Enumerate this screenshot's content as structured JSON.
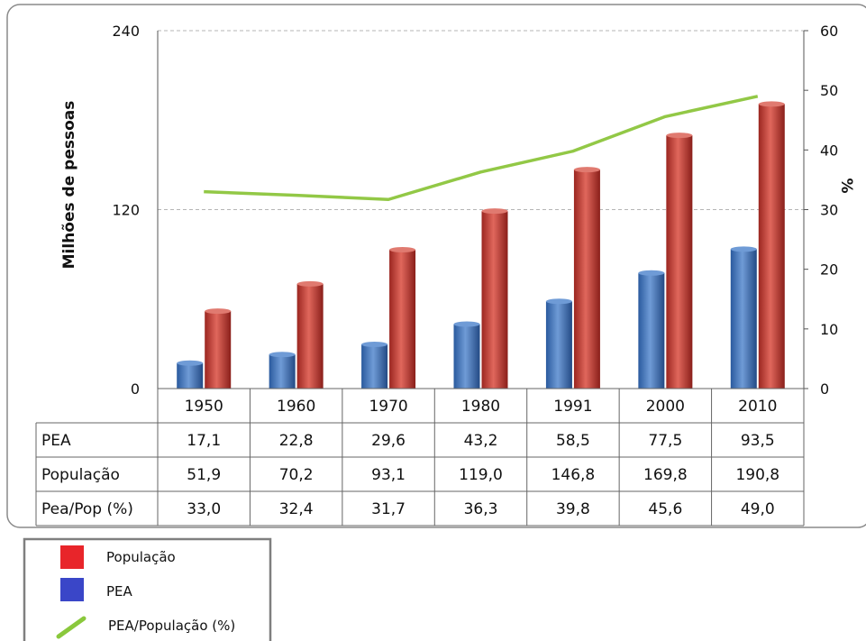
{
  "chart_data": {
    "type": "bar",
    "categories": [
      "1950",
      "1960",
      "1970",
      "1980",
      "1991",
      "2000",
      "2010"
    ],
    "series": [
      {
        "name": "PEA",
        "values": [
          17.1,
          22.8,
          29.6,
          43.2,
          58.5,
          77.5,
          93.5
        ],
        "color": "#3f6fb8",
        "axis": "left"
      },
      {
        "name": "População",
        "values": [
          51.9,
          70.2,
          93.1,
          119.0,
          146.8,
          169.8,
          190.8
        ],
        "color": "#c0392b",
        "axis": "left"
      },
      {
        "name": "PEA/População (%)",
        "values": [
          33.0,
          32.4,
          31.7,
          36.3,
          39.8,
          45.6,
          49.0
        ],
        "color": "#92c846",
        "axis": "right",
        "type": "line"
      }
    ],
    "ylabel": "Milhões de pessoas",
    "y2label": "%",
    "ylim": [
      0,
      240
    ],
    "yticks": [
      "0",
      "120",
      "240"
    ],
    "y2lim": [
      0,
      60
    ],
    "y2ticks": [
      "0",
      "10",
      "20",
      "30",
      "40",
      "50",
      "60"
    ],
    "grid": true,
    "table": {
      "rows": [
        {
          "label": "PEA",
          "values": [
            "17,1",
            "22,8",
            "29,6",
            "43,2",
            "58,5",
            "77,5",
            "93,5"
          ]
        },
        {
          "label": "População",
          "values": [
            "51,9",
            "70,2",
            "93,1",
            "119,0",
            "146,8",
            "169,8",
            "190,8"
          ]
        },
        {
          "label": "Pea/Pop (%)",
          "values": [
            "33,0",
            "32,4",
            "31,7",
            "36,3",
            "39,8",
            "45,6",
            "49,0"
          ]
        }
      ]
    },
    "legend": {
      "position": "bottom-left",
      "items": [
        {
          "label": "População",
          "color": "#e8252a",
          "shape": "square"
        },
        {
          "label": "PEA",
          "color": "#3a46c8",
          "shape": "square"
        },
        {
          "label": "PEA/População (%)",
          "color": "#8ac83c",
          "shape": "line"
        }
      ]
    }
  }
}
